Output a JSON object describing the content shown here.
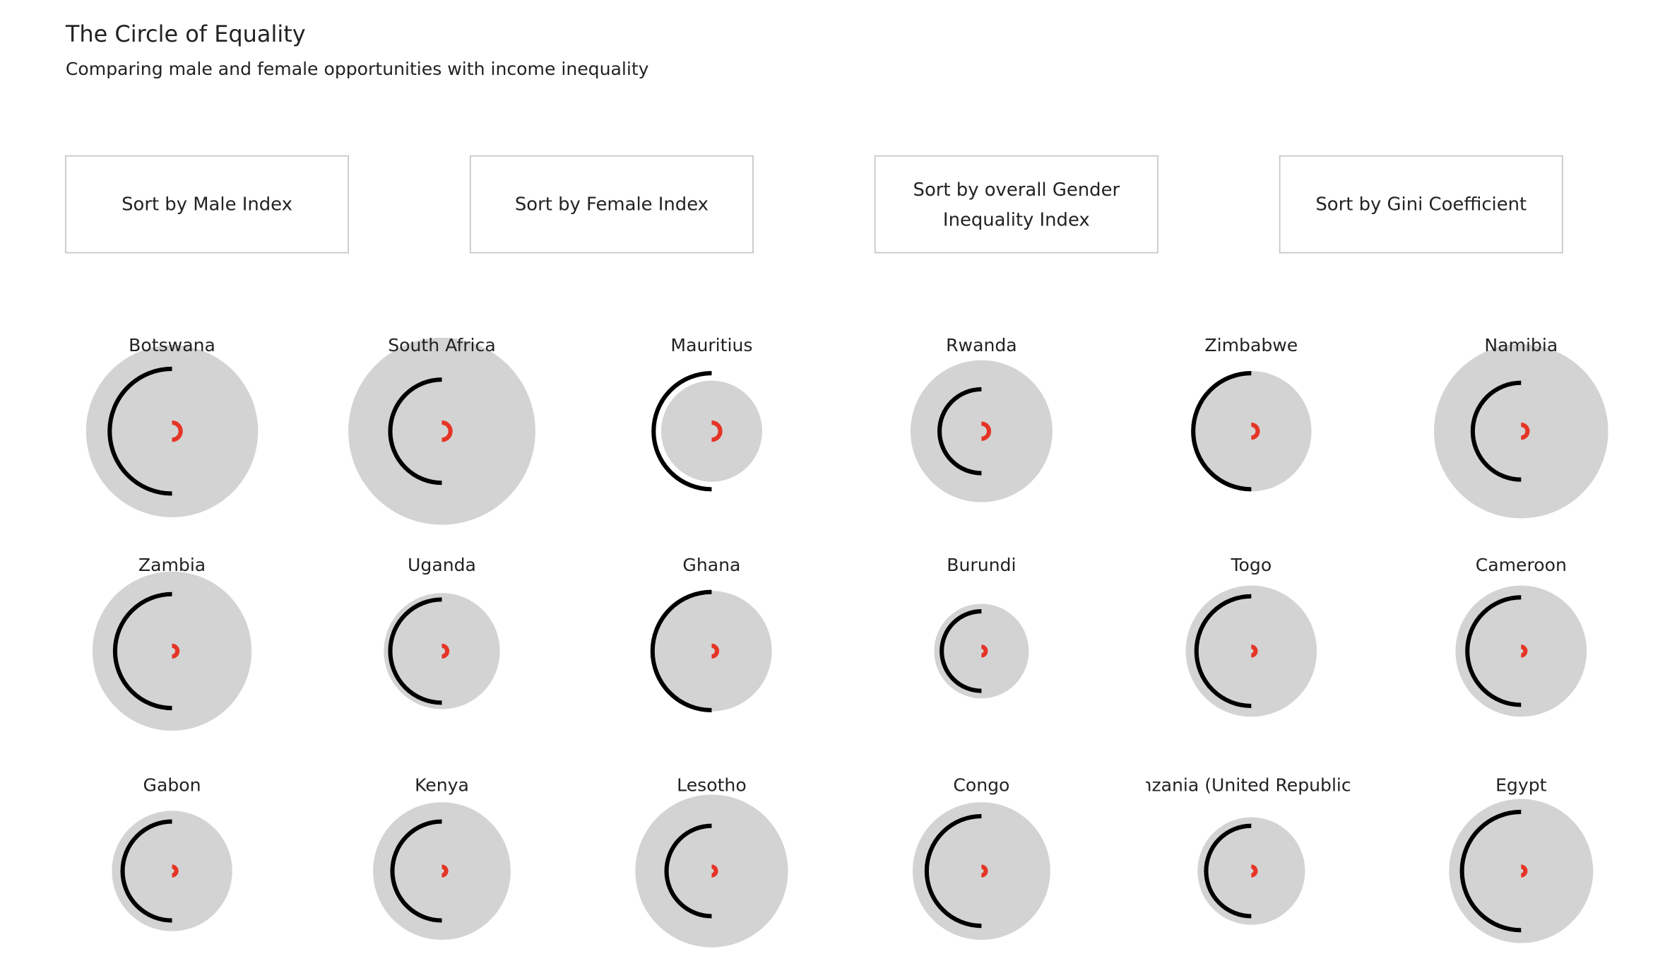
{
  "header": {
    "title": "The Circle of Equality",
    "subtitle": "Comparing male and female opportunities with income inequality"
  },
  "buttons": [
    "Sort by Male Index",
    "Sort by Female Index",
    [
      "Sort by overall Gender",
      "Inequality Index"
    ],
    "Sort by Gini Coefficient"
  ],
  "countries": [
    {
      "name": "Botswana",
      "gini": 80,
      "male": 58,
      "female": 8
    },
    {
      "name": "South Africa",
      "gini": 87,
      "male": 48,
      "female": 8
    },
    {
      "name": "Mauritius",
      "gini": 47,
      "male": 54,
      "female": 8
    },
    {
      "name": "Rwanda",
      "gini": 66,
      "male": 39,
      "female": 7
    },
    {
      "name": "Zimbabwe",
      "gini": 56,
      "male": 54,
      "female": 6
    },
    {
      "name": "Namibia",
      "gini": 81,
      "male": 45,
      "female": 6
    },
    {
      "name": "Zambia",
      "gini": 74,
      "male": 53,
      "female": 5
    },
    {
      "name": "Uganda",
      "gini": 54,
      "male": 48,
      "female": 5
    },
    {
      "name": "Ghana",
      "gini": 56,
      "male": 55,
      "female": 5
    },
    {
      "name": "Burundi",
      "gini": 44,
      "male": 37,
      "female": 4
    },
    {
      "name": "Togo",
      "gini": 61,
      "male": 51,
      "female": 4
    },
    {
      "name": "Cameroon",
      "gini": 61,
      "male": 50,
      "female": 4
    },
    {
      "name": "Gabon",
      "gini": 56,
      "male": 46,
      "female": 4
    },
    {
      "name": "Kenya",
      "gini": 64,
      "male": 46,
      "female": 4
    },
    {
      "name": "Lesotho",
      "gini": 71,
      "male": 42,
      "female": 4
    },
    {
      "name": "Congo",
      "gini": 64,
      "male": 51,
      "female": 4
    },
    {
      "name": "Tanzania (United Republic of)",
      "gini": 50,
      "male": 42,
      "female": 4
    },
    {
      "name": "Egypt",
      "gini": 67,
      "male": 55,
      "female": 4
    }
  ]
}
